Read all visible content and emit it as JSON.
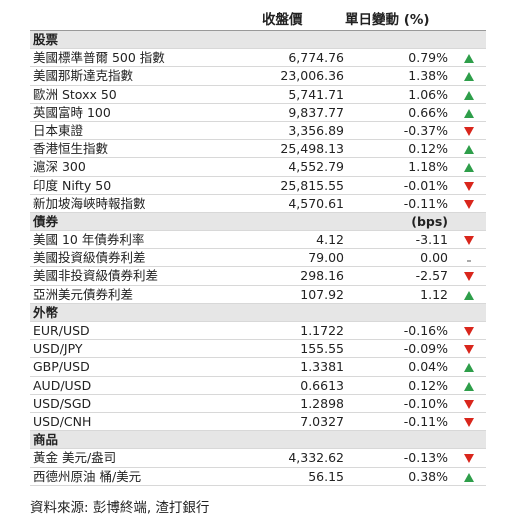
{
  "header": {
    "close": "收盤價",
    "change": "單日變動 (%)"
  },
  "sections": [
    {
      "title": "股票",
      "rows": [
        {
          "name": "美國標準普爾 500 指數",
          "close": "6,774.76",
          "change": "0.79%",
          "direction": "up"
        },
        {
          "name": "美國那斯達克指數",
          "close": "23,006.36",
          "change": "1.38%",
          "direction": "up"
        },
        {
          "name": "歐洲 Stoxx 50",
          "close": "5,741.71",
          "change": "1.06%",
          "direction": "up"
        },
        {
          "name": "英國富時 100",
          "close": "9,837.77",
          "change": "0.66%",
          "direction": "up"
        },
        {
          "name": "日本東證",
          "close": "3,356.89",
          "change": "-0.37%",
          "direction": "down"
        },
        {
          "name": "香港恒生指數",
          "close": "25,498.13",
          "change": "0.12%",
          "direction": "up"
        },
        {
          "name": "滬深 300",
          "close": "4,552.79",
          "change": "1.18%",
          "direction": "up"
        },
        {
          "name": "印度 Nifty 50",
          "close": "25,815.55",
          "change": "-0.01%",
          "direction": "down"
        },
        {
          "name": "新加坡海峽時報指數",
          "close": "4,570.61",
          "change": "-0.11%",
          "direction": "down"
        }
      ]
    },
    {
      "title": "債券",
      "unit": "(bps)",
      "rows": [
        {
          "name": "美國 10 年債券利率",
          "close": "4.12",
          "change": "-3.11",
          "direction": "down"
        },
        {
          "name": "美國投資級債券利差",
          "close": "79.00",
          "change": "0.00",
          "direction": "flat"
        },
        {
          "name": "美國非投資級債券利差",
          "close": "298.16",
          "change": "-2.57",
          "direction": "down"
        },
        {
          "name": "亞洲美元債券利差",
          "close": "107.92",
          "change": "1.12",
          "direction": "up"
        }
      ]
    },
    {
      "title": "外幣",
      "rows": [
        {
          "name": "EUR/USD",
          "close": "1.1722",
          "change": "-0.16%",
          "direction": "down"
        },
        {
          "name": "USD/JPY",
          "close": "155.55",
          "change": "-0.09%",
          "direction": "down"
        },
        {
          "name": "GBP/USD",
          "close": "1.3381",
          "change": "0.04%",
          "direction": "up"
        },
        {
          "name": "AUD/USD",
          "close": "0.6613",
          "change": "0.12%",
          "direction": "up"
        },
        {
          "name": "USD/SGD",
          "close": "1.2898",
          "change": "-0.10%",
          "direction": "down"
        },
        {
          "name": "USD/CNH",
          "close": "7.0327",
          "change": "-0.11%",
          "direction": "down"
        }
      ]
    },
    {
      "title": "商品",
      "rows": [
        {
          "name": "黃金 美元/盎司",
          "close": "4,332.62",
          "change": "-0.13%",
          "direction": "down"
        },
        {
          "name": "西德州原油 桶/美元",
          "close": "56.15",
          "change": "0.38%",
          "direction": "up"
        }
      ]
    }
  ],
  "source": "資料來源: 彭博終端, 渣打銀行"
}
